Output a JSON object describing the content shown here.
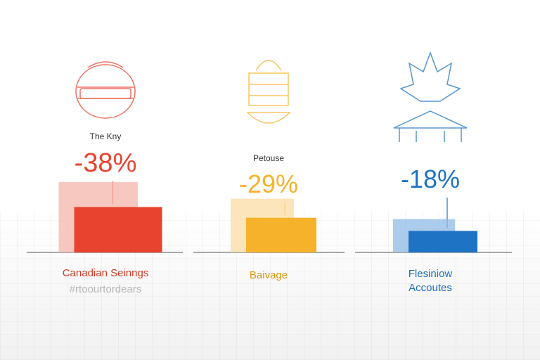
{
  "chart_data": {
    "type": "bar",
    "categories": [
      "Canadian Seinngs",
      "Baivage",
      "Flesiniow Accoutes"
    ],
    "values": [
      -38,
      -29,
      -18
    ],
    "panels": [
      {
        "icon": "football-helmet-icon",
        "small_label": "The Kny",
        "value_label": "-38%",
        "value": -38,
        "category_lines": [
          "Canadian Seinngs",
          "#rtoourtordears"
        ],
        "color": "#e8432f",
        "ghost_color": "#f4b5ab"
      },
      {
        "icon": "food-stand-icon",
        "small_label": "Petouse",
        "value_label": "-29%",
        "value": -29,
        "category_lines": [
          "Baivage"
        ],
        "color": "#f6b22b",
        "ghost_color": "#fbdca3"
      },
      {
        "icon": "maple-leaf-house-icon",
        "small_label": "",
        "value_label": "-18%",
        "value": -18,
        "category_lines": [
          "Flesiniow",
          "Accoutes"
        ],
        "color": "#1e73c4",
        "ghost_color": "#8fbbe6"
      }
    ]
  }
}
